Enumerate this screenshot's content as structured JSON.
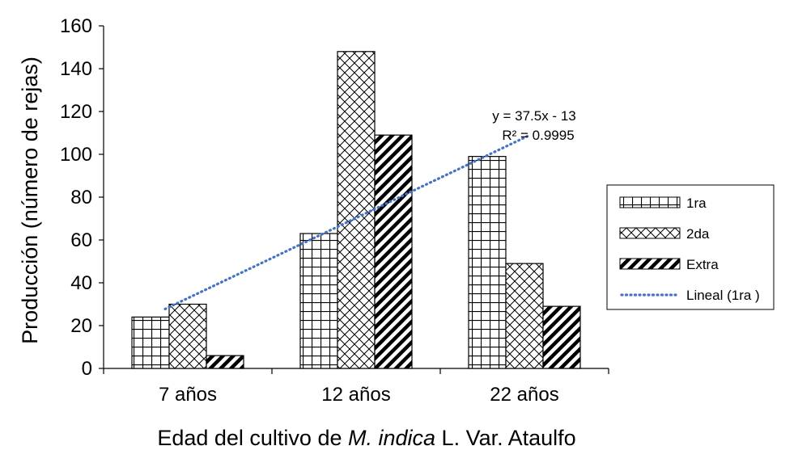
{
  "chart_data": {
    "type": "bar",
    "categories": [
      "7 años",
      "12 años",
      "22 años"
    ],
    "series": [
      {
        "name": "1ra",
        "values": [
          24,
          63,
          99
        ],
        "pattern": "grid"
      },
      {
        "name": "2da",
        "values": [
          30,
          148,
          49
        ],
        "pattern": "crosshatch"
      },
      {
        "name": "Extra",
        "values": [
          6,
          109,
          29
        ],
        "pattern": "diagonal"
      }
    ],
    "trendline": {
      "name": "Lineal (1ra )",
      "of_series": "1ra",
      "type": "linear",
      "slope": 37.5,
      "intercept": -13,
      "equation": "y = 37.5x - 13",
      "r_squared": "R² = 0.9995",
      "color": "#4472C4"
    },
    "ylabel": "Producción (número de rejas)",
    "xlabel_parts": [
      {
        "text": "Edad del cultivo de ",
        "italic": false
      },
      {
        "text": "M. indica",
        "italic": true
      },
      {
        "text": " L. Var. Ataulfo",
        "italic": false
      }
    ],
    "ylim": [
      0,
      160
    ],
    "yticks": [
      "0",
      "20",
      "40",
      "60",
      "80",
      "100",
      "120",
      "140",
      "160"
    ],
    "grid": false,
    "legend_position": "right"
  }
}
